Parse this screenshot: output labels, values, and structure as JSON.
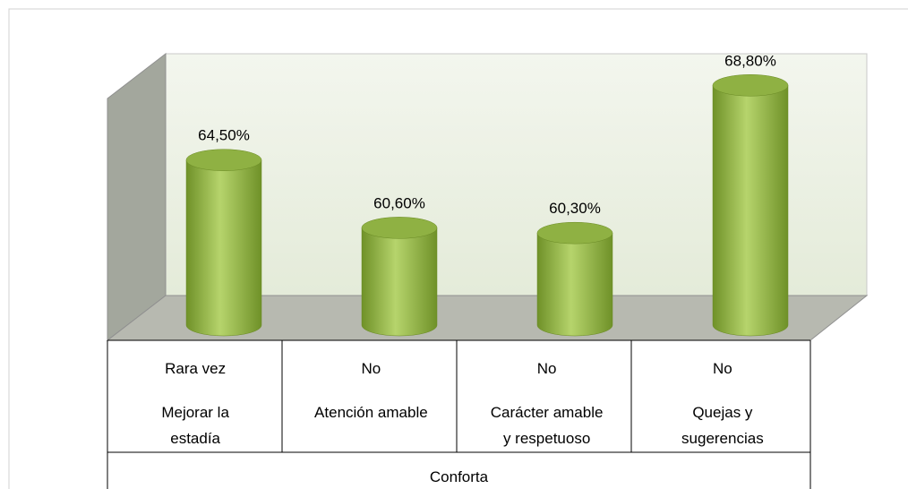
{
  "chart_data": {
    "type": "bar",
    "categories": [
      "Mejorar la\nestadía",
      "Atención amable",
      "Carácter amable\n y  respetuoso",
      "Quejas y\nsugerencias"
    ],
    "sublabels": [
      "Rara vez",
      "No",
      "No",
      "No"
    ],
    "group_label": "Conforta",
    "values": [
      64.5,
      60.6,
      60.3,
      68.8
    ],
    "value_labels": [
      "64,50%",
      "60,60%",
      "60,30%",
      "68,80%"
    ],
    "color": "#9bbb59",
    "ylim": [
      55,
      70
    ]
  }
}
